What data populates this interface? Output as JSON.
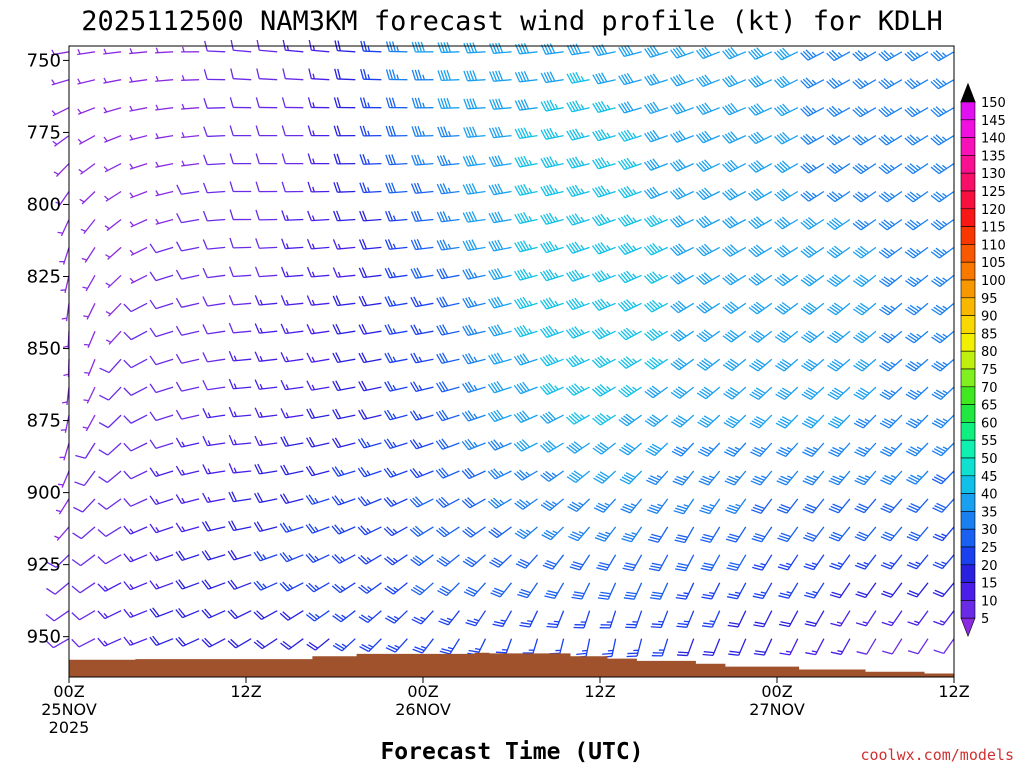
{
  "chart_data": {
    "type": "wind-barb-time-height",
    "title": "2025112500 NAM3KM forecast wind profile (kt) for KDLH",
    "xlabel": "Forecast Time (UTC)",
    "ylabel": "",
    "units": "kt",
    "x_range_hours": [
      0,
      60
    ],
    "y_range_hpa": [
      745,
      964
    ],
    "y_ticks": [
      {
        "value": 750,
        "label": "750"
      },
      {
        "value": 775,
        "label": "775"
      },
      {
        "value": 800,
        "label": "800"
      },
      {
        "value": 825,
        "label": "825"
      },
      {
        "value": 850,
        "label": "850"
      },
      {
        "value": 875,
        "label": "875"
      },
      {
        "value": 900,
        "label": "900"
      },
      {
        "value": 925,
        "label": "925"
      },
      {
        "value": 950,
        "label": "950"
      }
    ],
    "x_ticks": [
      {
        "hour": 0,
        "lines": [
          "00Z",
          "25NOV",
          "2025"
        ]
      },
      {
        "hour": 12,
        "lines": [
          "12Z"
        ]
      },
      {
        "hour": 24,
        "lines": [
          "00Z",
          "26NOV"
        ]
      },
      {
        "hour": 36,
        "lines": [
          "12Z"
        ]
      },
      {
        "hour": 48,
        "lines": [
          "00Z",
          "27NOV"
        ]
      },
      {
        "hour": 60,
        "lines": [
          "12Z"
        ]
      }
    ],
    "colorbar": {
      "levels": [
        "5",
        "10",
        "15",
        "20",
        "25",
        "30",
        "35",
        "40",
        "45",
        "50",
        "55",
        "60",
        "65",
        "70",
        "75",
        "80",
        "85",
        "90",
        "95",
        "100",
        "105",
        "110",
        "115",
        "120",
        "125",
        "130",
        "135",
        "140",
        "145",
        "150"
      ],
      "colors": [
        "#8a2be2",
        "#6a2be6",
        "#4a1ee8",
        "#2a20e0",
        "#1a40f0",
        "#1a60f0",
        "#1a80f0",
        "#1aa0f0",
        "#10c0e8",
        "#10e0d0",
        "#10f0b0",
        "#10f080",
        "#20e840",
        "#40e820",
        "#80f020",
        "#c0f010",
        "#f0f000",
        "#f8d800",
        "#f8b800",
        "#f89800",
        "#f87800",
        "#f85800",
        "#f83800",
        "#f81818",
        "#f81040",
        "#f81068",
        "#f81090",
        "#f810b8",
        "#f010e0",
        "#e010f0"
      ]
    },
    "surface_pressure_hpa": [
      [
        0,
        958
      ],
      [
        4.5,
        957.8
      ],
      [
        12,
        957.8
      ],
      [
        16.5,
        956.8
      ],
      [
        19.5,
        956
      ],
      [
        27.5,
        955.6
      ],
      [
        28.5,
        955.8
      ],
      [
        34,
        956.8
      ],
      [
        36.5,
        957.6
      ],
      [
        38.5,
        958.4
      ],
      [
        42.5,
        959.4
      ],
      [
        44.5,
        960.4
      ],
      [
        49.5,
        961.4
      ],
      [
        54,
        962.2
      ],
      [
        58,
        962.8
      ],
      [
        60,
        962.8
      ]
    ],
    "series": [
      {
        "hour": 0,
        "level_hpa": [
          950,
          930,
          910,
          890,
          870,
          850,
          830,
          810,
          790,
          770,
          750
        ],
        "speed_kt": [
          8,
          8,
          7,
          6,
          6,
          5,
          5,
          5,
          5,
          5,
          5
        ],
        "dir_deg": [
          240,
          230,
          220,
          200,
          190,
          180,
          190,
          200,
          220,
          240,
          260
        ]
      },
      {
        "hour": 6,
        "level_hpa": [
          950,
          930,
          910,
          890,
          870,
          850,
          830,
          810,
          790,
          770,
          750
        ],
        "speed_kt": [
          18,
          16,
          14,
          12,
          10,
          9,
          8,
          7,
          6,
          6,
          6
        ],
        "dir_deg": [
          250,
          250,
          250,
          250,
          250,
          250,
          250,
          250,
          255,
          260,
          265
        ]
      },
      {
        "hour": 12,
        "level_hpa": [
          950,
          930,
          910,
          890,
          870,
          850,
          830,
          810,
          790,
          770,
          750
        ],
        "speed_kt": [
          20,
          22,
          20,
          16,
          14,
          12,
          11,
          10,
          9,
          8,
          8
        ],
        "dir_deg": [
          240,
          250,
          260,
          265,
          265,
          265,
          265,
          270,
          270,
          270,
          275
        ]
      },
      {
        "hour": 18,
        "level_hpa": [
          950,
          930,
          910,
          890,
          870,
          850,
          830,
          810,
          790,
          770,
          750
        ],
        "speed_kt": [
          22,
          25,
          25,
          22,
          18,
          16,
          15,
          14,
          14,
          14,
          15
        ],
        "dir_deg": [
          230,
          240,
          250,
          255,
          260,
          260,
          265,
          265,
          270,
          270,
          275
        ]
      },
      {
        "hour": 24,
        "level_hpa": [
          950,
          930,
          910,
          890,
          870,
          850,
          830,
          810,
          790,
          770,
          750
        ],
        "speed_kt": [
          25,
          28,
          28,
          25,
          25,
          25,
          25,
          28,
          32,
          35,
          38
        ],
        "dir_deg": [
          220,
          230,
          240,
          250,
          255,
          260,
          260,
          265,
          265,
          270,
          270
        ]
      },
      {
        "hour": 30,
        "level_hpa": [
          950,
          930,
          910,
          890,
          870,
          850,
          830,
          810,
          790,
          770,
          750
        ],
        "speed_kt": [
          25,
          30,
          32,
          35,
          38,
          40,
          42,
          42,
          42,
          42,
          40
        ],
        "dir_deg": [
          200,
          220,
          235,
          245,
          250,
          255,
          255,
          260,
          260,
          265,
          265
        ]
      },
      {
        "hour": 36,
        "level_hpa": [
          950,
          930,
          910,
          890,
          870,
          850,
          830,
          810,
          790,
          770,
          750
        ],
        "speed_kt": [
          25,
          30,
          35,
          40,
          45,
          48,
          48,
          48,
          45,
          45,
          42
        ],
        "dir_deg": [
          190,
          205,
          220,
          230,
          240,
          245,
          250,
          250,
          255,
          255,
          260
        ]
      },
      {
        "hour": 42,
        "level_hpa": [
          950,
          930,
          910,
          890,
          870,
          850,
          830,
          810,
          790,
          770,
          750
        ],
        "speed_kt": [
          22,
          28,
          32,
          36,
          40,
          42,
          42,
          42,
          40,
          40,
          40
        ],
        "dir_deg": [
          200,
          205,
          210,
          220,
          230,
          235,
          240,
          245,
          245,
          250,
          250
        ]
      },
      {
        "hour": 48,
        "level_hpa": [
          950,
          930,
          910,
          890,
          870,
          850,
          830,
          810,
          790,
          770,
          750
        ],
        "speed_kt": [
          18,
          25,
          30,
          35,
          38,
          40,
          40,
          40,
          38,
          38,
          38
        ],
        "dir_deg": [
          205,
          210,
          215,
          220,
          225,
          230,
          235,
          240,
          240,
          245,
          245
        ]
      },
      {
        "hour": 54,
        "level_hpa": [
          950,
          930,
          910,
          890,
          870,
          850,
          830,
          810,
          790,
          770,
          750
        ],
        "speed_kt": [
          12,
          22,
          30,
          35,
          38,
          38,
          38,
          38,
          36,
          36,
          36
        ],
        "dir_deg": [
          210,
          215,
          220,
          220,
          225,
          230,
          230,
          235,
          235,
          240,
          240
        ]
      },
      {
        "hour": 60,
        "level_hpa": [
          950,
          930,
          910,
          890,
          870,
          850,
          830,
          810,
          790,
          770,
          750
        ],
        "speed_kt": [
          8,
          20,
          28,
          33,
          36,
          36,
          36,
          36,
          35,
          35,
          35
        ],
        "dir_deg": [
          215,
          220,
          220,
          225,
          225,
          230,
          230,
          235,
          235,
          240,
          240
        ]
      }
    ],
    "grid": false,
    "legend": "right colorbar"
  },
  "credit": "coolwx.com/models"
}
